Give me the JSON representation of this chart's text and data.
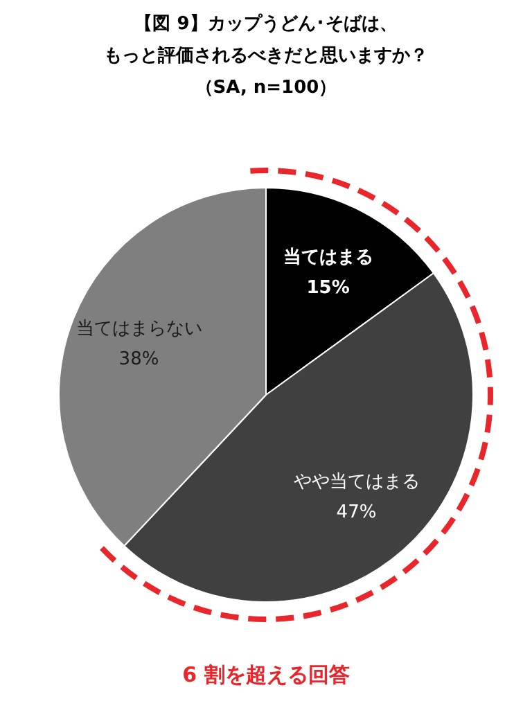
{
  "chart_data": {
    "type": "pie",
    "title": "【図 9】カップうどん･そばは、",
    "subtitle": "もっと評価されるべきだと思いますか？",
    "categories": [
      "当てはまる",
      "やや当てはまる",
      "当てはまらない"
    ],
    "values": [
      15,
      47,
      38
    ],
    "value_labels": [
      "15%",
      "47%",
      "38%"
    ],
    "colors": [
      "#000000",
      "#404040",
      "#7f7f7f"
    ],
    "annotations": [
      "（SA, n=100）",
      "6 割を超える回答"
    ],
    "legend": false
  }
}
